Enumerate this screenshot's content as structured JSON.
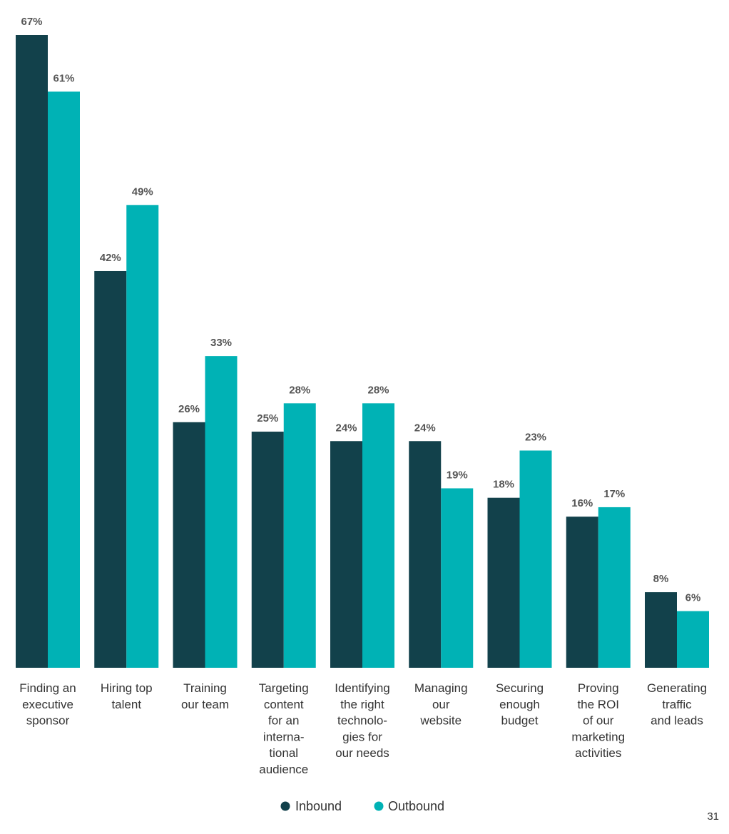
{
  "chart_data": {
    "type": "bar",
    "categories": [
      [
        "Finding an",
        "executive",
        "sponsor"
      ],
      [
        "Hiring top",
        "talent"
      ],
      [
        "Training",
        "our team"
      ],
      [
        "Targeting",
        "content",
        "for an",
        "interna-",
        "tional",
        "audience"
      ],
      [
        "Identifying",
        "the right",
        "technolo-",
        "gies for",
        "our needs"
      ],
      [
        "Managing",
        "our",
        "website"
      ],
      [
        "Securing",
        "enough",
        "budget"
      ],
      [
        "Proving",
        "the ROI",
        "of our",
        "marketing",
        "activities"
      ],
      [
        "Generating",
        "traffic",
        "and leads"
      ]
    ],
    "series": [
      {
        "name": "Inbound",
        "color": "#12414b",
        "values": [
          67,
          42,
          26,
          25,
          24,
          24,
          18,
          16,
          8
        ],
        "labels": [
          "67%",
          "42%",
          "26%",
          "25%",
          "24%",
          "24%",
          "18%",
          "16%",
          "8%"
        ]
      },
      {
        "name": "Outbound",
        "color": "#00b2b5",
        "values": [
          61,
          49,
          33,
          28,
          28,
          19,
          23,
          17,
          6
        ],
        "labels": [
          "61%",
          "49%",
          "33%",
          "28%",
          "28%",
          "19%",
          "23%",
          "17%",
          "6%"
        ]
      }
    ],
    "ylim": [
      0,
      67
    ],
    "grid": false,
    "legend_position": "bottom-center",
    "title": "",
    "xlabel": "",
    "ylabel": ""
  },
  "page_number": "31"
}
